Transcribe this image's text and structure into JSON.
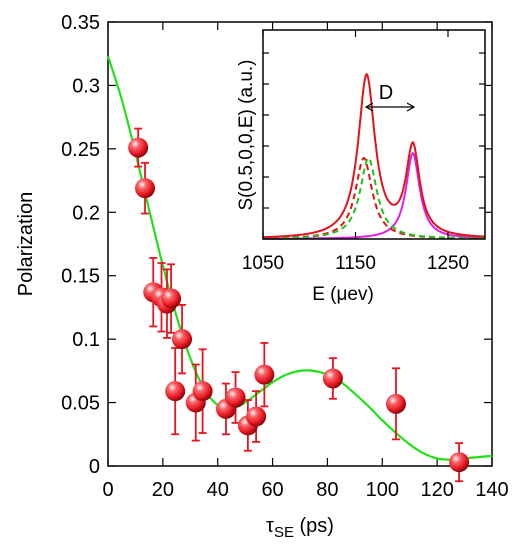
{
  "chart_data": [
    {
      "type": "scatter",
      "xlabel": "τ",
      "xlabel_subscript": "SE",
      "xlabel_unit": " (ps)",
      "ylabel": "Polarization",
      "xlim": [
        0,
        140
      ],
      "ylim": [
        0,
        0.35
      ],
      "x_ticks": [
        0,
        20,
        40,
        60,
        80,
        100,
        120,
        140
      ],
      "y_ticks": [
        0,
        0.05,
        0.1,
        0.15,
        0.2,
        0.25,
        0.3,
        0.35
      ],
      "x_tick_labels": [
        "0",
        "20",
        "40",
        "60",
        "80",
        "100",
        "120",
        "140"
      ],
      "y_tick_labels": [
        "0",
        "0.05",
        "0.1",
        "0.15",
        "0.2",
        "0.25",
        "0.3",
        "0.35"
      ],
      "grid": false,
      "marker_color": "#e8141e",
      "fit_color": "#22e01a",
      "points": [
        {
          "x": 11,
          "y": 0.251,
          "err": 0.015
        },
        {
          "x": 13.5,
          "y": 0.219,
          "err": 0.02
        },
        {
          "x": 16.5,
          "y": 0.137,
          "err": 0.027
        },
        {
          "x": 19.5,
          "y": 0.133,
          "err": 0.027
        },
        {
          "x": 21.5,
          "y": 0.128,
          "err": 0.027
        },
        {
          "x": 23,
          "y": 0.132,
          "err": 0.027
        },
        {
          "x": 24.5,
          "y": 0.059,
          "err": 0.034
        },
        {
          "x": 27,
          "y": 0.1,
          "err": 0.027
        },
        {
          "x": 32,
          "y": 0.05,
          "err": 0.03
        },
        {
          "x": 34.5,
          "y": 0.059,
          "err": 0.033
        },
        {
          "x": 43,
          "y": 0.045,
          "err": 0.02
        },
        {
          "x": 46.5,
          "y": 0.054,
          "err": 0.02
        },
        {
          "x": 51,
          "y": 0.032,
          "err": 0.02
        },
        {
          "x": 54,
          "y": 0.039,
          "err": 0.02
        },
        {
          "x": 57,
          "y": 0.072,
          "err": 0.025
        },
        {
          "x": 82,
          "y": 0.069,
          "err": 0.016
        },
        {
          "x": 105,
          "y": 0.049,
          "err": 0.028
        },
        {
          "x": 128,
          "y": 0.003,
          "err": 0.015
        }
      ],
      "fit_curve": {
        "x": [
          0,
          5,
          10,
          15,
          20,
          25,
          30,
          35,
          40,
          45,
          50,
          55,
          60,
          65,
          70,
          75,
          80,
          85,
          90,
          95,
          100,
          105,
          110,
          115,
          120,
          125,
          130,
          135,
          140
        ],
        "y": [
          0.323,
          0.289,
          0.247,
          0.202,
          0.158,
          0.118,
          0.085,
          0.061,
          0.048,
          0.045,
          0.05,
          0.058,
          0.066,
          0.072,
          0.075,
          0.075,
          0.072,
          0.066,
          0.057,
          0.047,
          0.036,
          0.026,
          0.017,
          0.01,
          0.006,
          0.005,
          0.006,
          0.007,
          0.008
        ]
      }
    },
    {
      "type": "line",
      "inset": true,
      "xlabel": "E (μev)",
      "ylabel": "S(0.5,0,0,E) (a.u.)",
      "xlim": [
        1050,
        1290
      ],
      "x_ticks": [
        1050,
        1150,
        1250
      ],
      "x_tick_labels": [
        "1050",
        "1150",
        "1250"
      ],
      "annotation": "D",
      "peak_energies": [
        1162,
        1212
      ],
      "colors": {
        "total": "#e0141c",
        "peak2": "#e020e0",
        "dashed_red": "#e0141c",
        "dashed_green": "#22c01a"
      }
    }
  ]
}
